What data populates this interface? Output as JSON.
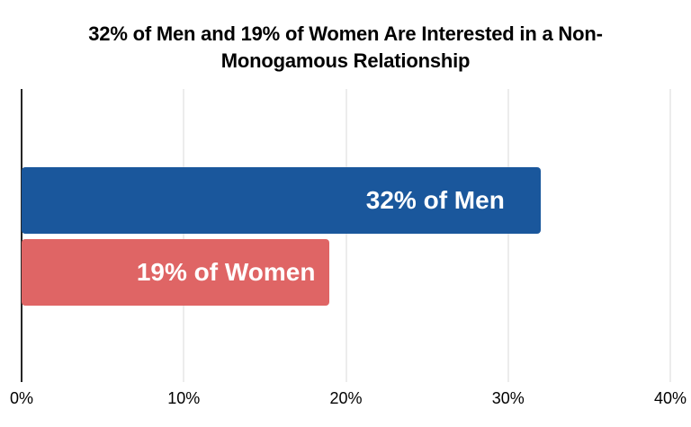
{
  "chart": {
    "title_lines": [
      "32% of Men and 19% of Women Are Interested in a Non-",
      "Monogamous Relationship"
    ]
  },
  "chart_data": {
    "type": "bar",
    "orientation": "horizontal",
    "title": "32% of Men and 19% of Women Are Interested in a Non-Monogamous Relationship",
    "categories": [
      "Men",
      "Women"
    ],
    "values": [
      32,
      19
    ],
    "series": [
      {
        "name": "Men",
        "value": 32,
        "bar_label": "32% of Men",
        "color": "#1A579C"
      },
      {
        "name": "Women",
        "value": 19,
        "bar_label": "19% of Women",
        "color": "#DF6565"
      }
    ],
    "xlabel": "",
    "ylabel": "",
    "xlim": [
      0,
      40
    ],
    "x_ticks": [
      {
        "value": 0,
        "label": "0%"
      },
      {
        "value": 10,
        "label": "10%"
      },
      {
        "value": 20,
        "label": "20%"
      },
      {
        "value": 30,
        "label": "30%"
      },
      {
        "value": 40,
        "label": "40%"
      }
    ],
    "grid": "vertical-gridlines",
    "legend": false,
    "bar_label_position": "inside-end",
    "bar_label_color": "#FFFFFF",
    "colors": {
      "axis_line": "#262626",
      "gridline": "#D9D9D9",
      "title": "#000000",
      "tick_label": "#000000",
      "background": "#FFFFFF"
    }
  }
}
